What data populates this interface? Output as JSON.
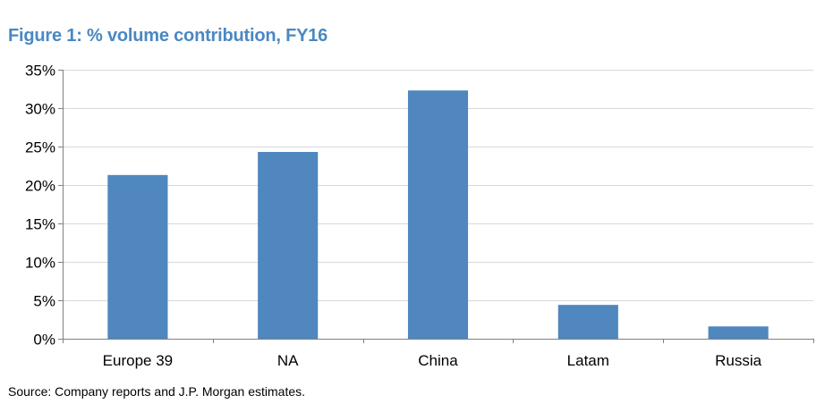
{
  "chart_data": {
    "type": "bar",
    "title": "Figure 1: % volume contribution, FY16",
    "categories": [
      "Europe 39",
      "NA",
      "China",
      "Latam",
      "Russia"
    ],
    "values": [
      21.3,
      24.3,
      32.3,
      4.4,
      1.6
    ],
    "ylim": [
      0,
      35
    ],
    "yticks": [
      0,
      5,
      10,
      15,
      20,
      25,
      30,
      35
    ],
    "ytick_labels": [
      "0%",
      "5%",
      "10%",
      "15%",
      "20%",
      "25%",
      "30%",
      "35%"
    ],
    "xlabel": "",
    "ylabel": "",
    "grid": true,
    "bar_color": "#4f87be",
    "grid_color": "#d9d9d9",
    "title_color": "#4a88c2"
  },
  "source_note": "Source: Company reports and J.P. Morgan estimates."
}
